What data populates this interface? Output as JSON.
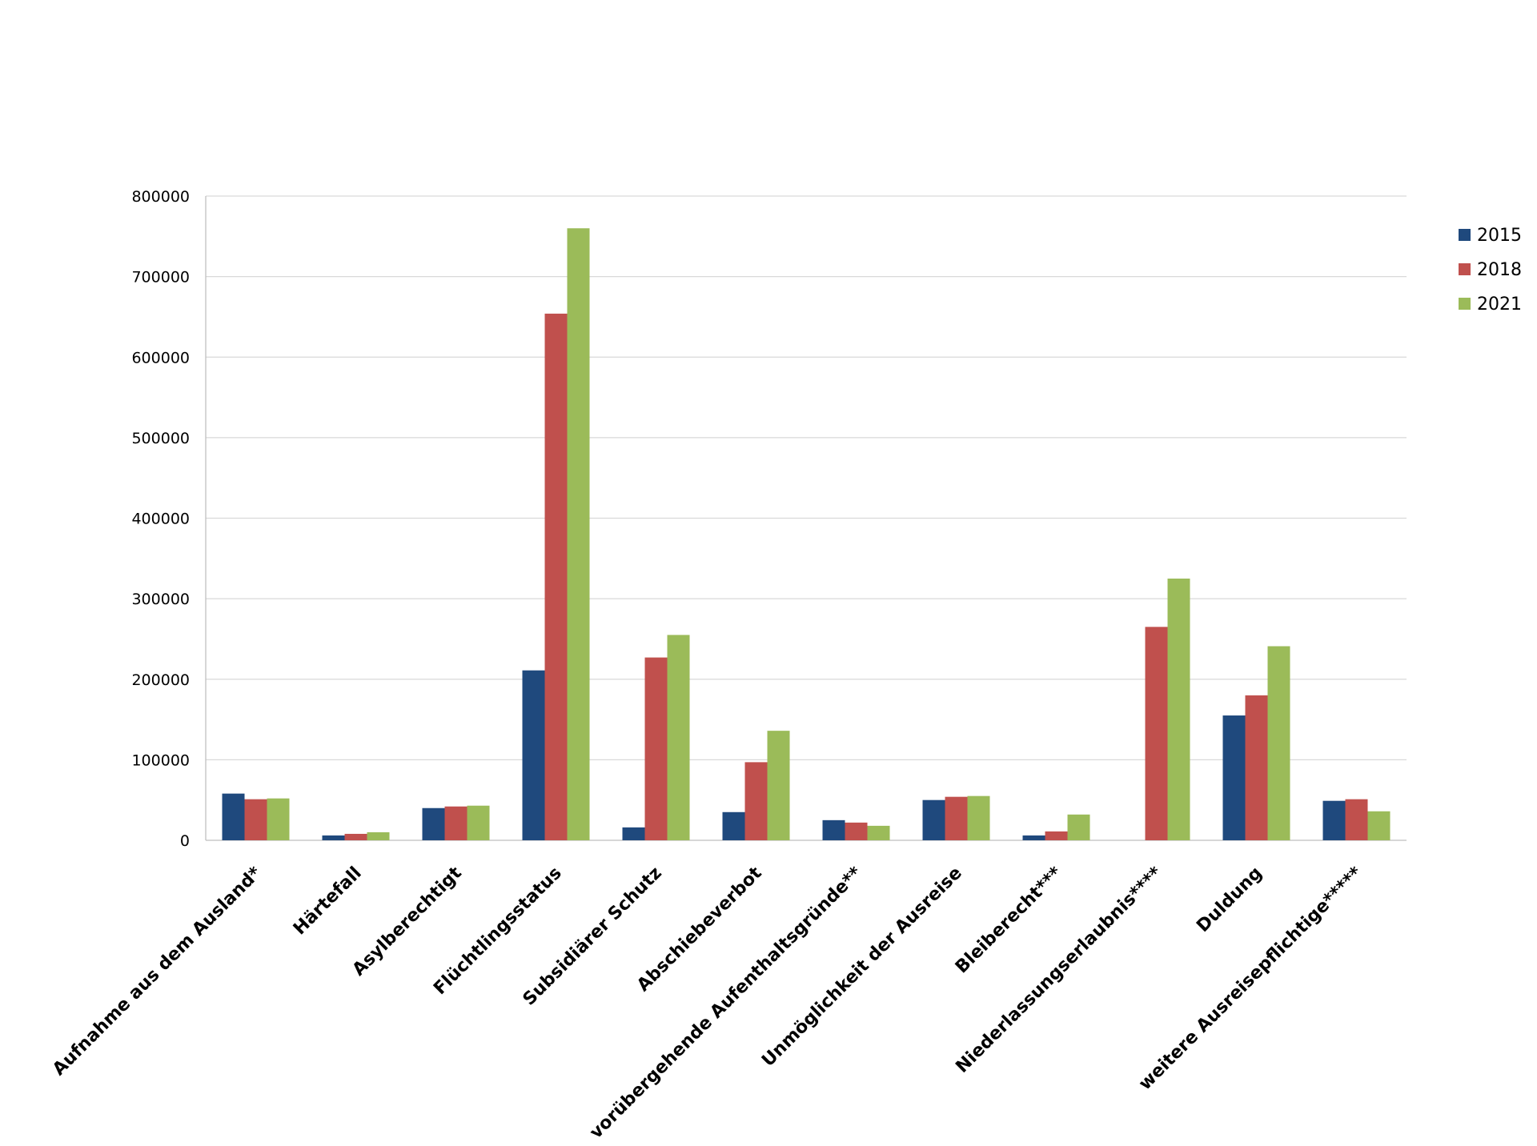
{
  "chart_data": {
    "type": "bar",
    "title": "",
    "xlabel": "",
    "ylabel": "",
    "ylim": [
      0,
      800000
    ],
    "yticks": [
      0,
      100000,
      200000,
      300000,
      400000,
      500000,
      600000,
      700000,
      800000
    ],
    "ytick_labels": [
      "0",
      "100000",
      "200000",
      "300000",
      "400000",
      "500000",
      "600000",
      "700000",
      "800000"
    ],
    "grid": true,
    "legend_position": "top-right",
    "categories": [
      "Aufnahme aus dem Ausland*",
      "Härtefall",
      "Asylberechtigt",
      "Flüchtlingsstatus",
      "Subsidiärer Schutz",
      "Abschiebeverbot",
      "vorübergehende Aufenthaltsgründe**",
      "Unmöglichkeit der Ausreise",
      "Bleiberecht***",
      "Niederlassungserlaubnis****",
      "Duldung",
      "weitere Ausreisepflichtige*****"
    ],
    "series": [
      {
        "name": "2015",
        "color": "#1F497D",
        "values": [
          58000,
          6000,
          40000,
          211000,
          16000,
          35000,
          25000,
          50000,
          6000,
          0,
          155000,
          49000
        ]
      },
      {
        "name": "2018",
        "color": "#C0504D",
        "values": [
          51000,
          8000,
          42000,
          654000,
          227000,
          97000,
          22000,
          54000,
          11000,
          265000,
          180000,
          51000
        ]
      },
      {
        "name": "2021",
        "color": "#9BBB59",
        "values": [
          52000,
          10000,
          43000,
          760000,
          255000,
          136000,
          18000,
          55000,
          32000,
          325000,
          241000,
          36000
        ]
      }
    ]
  }
}
